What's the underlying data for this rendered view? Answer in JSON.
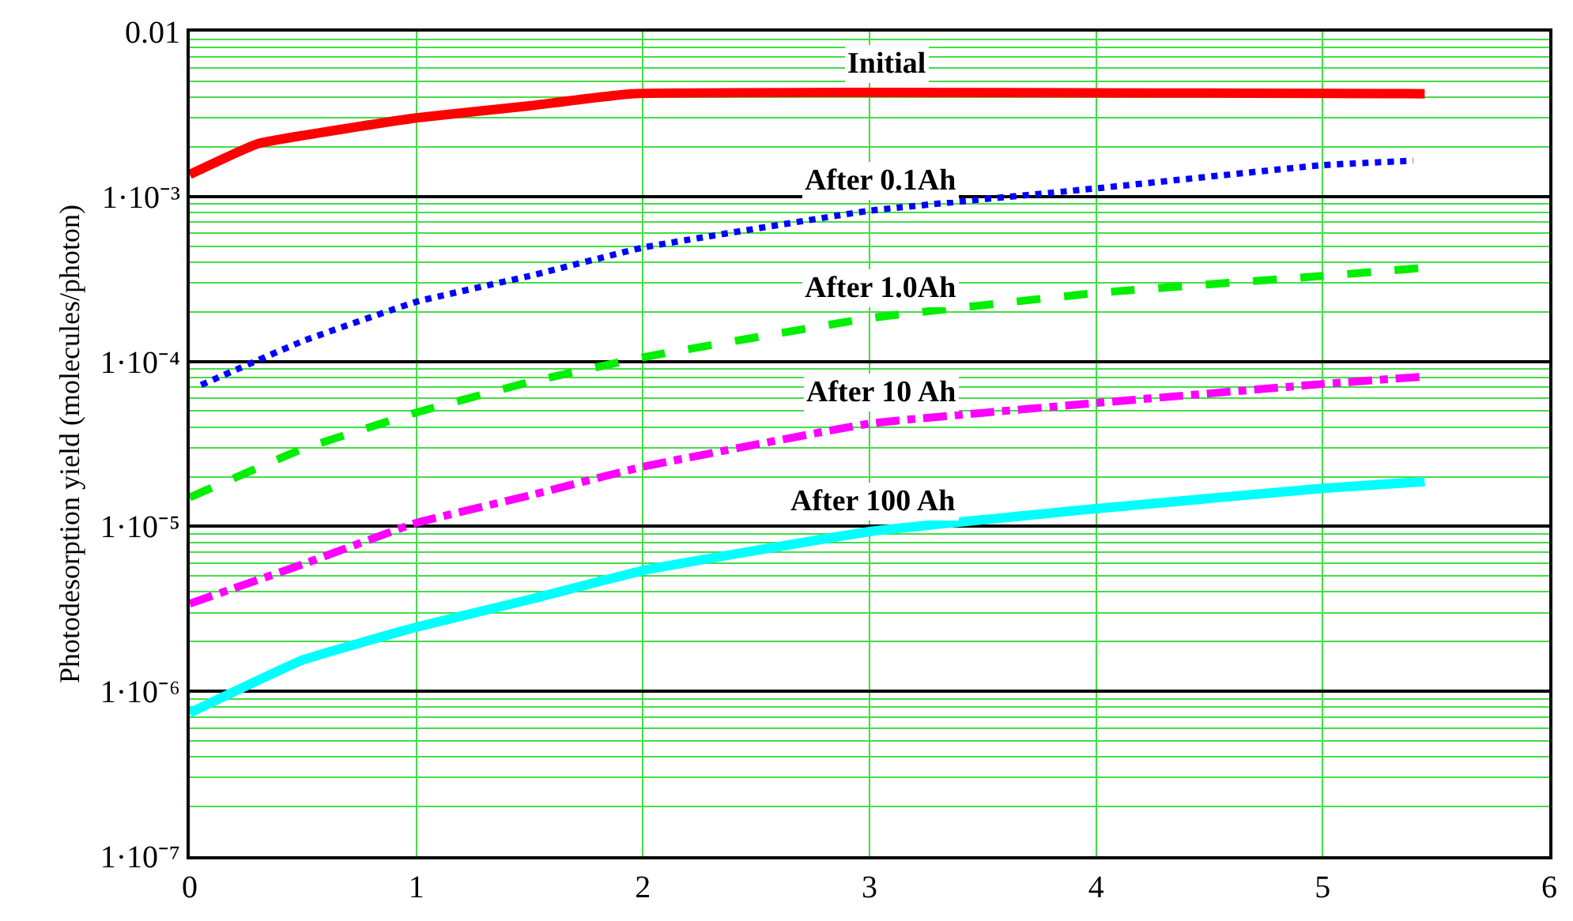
{
  "chart_data": {
    "type": "line",
    "ylabel": "Photodesorption yield (molecules/photon)",
    "log": "y",
    "grid": true,
    "xlim": [
      0,
      6
    ],
    "xticks": [
      0,
      1,
      2,
      3,
      4,
      5,
      6
    ],
    "ylim": [
      1e-07,
      0.01
    ],
    "yticks": [
      {
        "value": 1e-07,
        "label": "1·10⁻⁷"
      },
      {
        "value": 1e-06,
        "label": "1·10⁻⁶"
      },
      {
        "value": 1e-05,
        "label": "1·10⁻⁵"
      },
      {
        "value": 0.0001,
        "label": "1·10⁻⁴"
      },
      {
        "value": 0.001,
        "label": "1·10⁻³"
      },
      0.01
    ],
    "series": [
      {
        "color": "#ff0000",
        "line_style": "solid",
        "x": [
          0,
          0.3,
          1,
          1.5,
          1.95,
          5.45
        ],
        "values": [
          0.00136,
          0.00209,
          0.003,
          0.00355,
          0.0042,
          0.0042
        ]
      },
      {
        "color": "#0000ff",
        "line_style": "dotted",
        "x": [
          0.05,
          0.5,
          1,
          1.5,
          2,
          3,
          4,
          5,
          5.4
        ],
        "values": [
          7.2e-05,
          0.000133,
          0.00023,
          0.00033,
          0.00049,
          0.00082,
          0.00112,
          0.00155,
          0.00165
        ]
      },
      {
        "color": "#00ee00",
        "line_style": "dashed",
        "x": [
          0,
          0.5,
          1,
          1.5,
          2,
          3,
          4,
          5,
          5.45
        ],
        "values": [
          1.5e-05,
          2.95e-05,
          4.9e-05,
          7.5e-05,
          0.000106,
          0.000183,
          0.00026,
          0.00033,
          0.00037
        ]
      },
      {
        "color": "#ff00ff",
        "line_style": "dashdot",
        "x": [
          0,
          0.5,
          1,
          1.5,
          2,
          3,
          4,
          5,
          5.45
        ],
        "values": [
          3.4e-06,
          5.9e-06,
          1.05e-05,
          1.54e-05,
          2.3e-05,
          4.2e-05,
          5.6e-05,
          7.3e-05,
          8.1e-05
        ]
      },
      {
        "color": "#00ffff",
        "line_style": "solid",
        "x": [
          0,
          0.5,
          1,
          1.5,
          2,
          3,
          4,
          5,
          5.45
        ],
        "values": [
          7.4e-07,
          1.55e-06,
          2.45e-06,
          3.6e-06,
          5.4e-06,
          9.3e-06,
          1.28e-05,
          1.7e-05,
          1.87e-05
        ]
      }
    ],
    "annotations": [
      {
        "text": "Initial",
        "x": 3.08,
        "y": 0.0042
      },
      {
        "text": "After 0.1Ah",
        "x": 3.05,
        "y": 0.00083
      },
      {
        "text": "After 1.0Ah",
        "x": 3.05,
        "y": 0.000185
      },
      {
        "text": "After 10 Ah",
        "x": 3.05,
        "y": 4.3e-05
      },
      {
        "text": "After 100 Ah",
        "x": 3.02,
        "y": 9.3e-06
      }
    ]
  }
}
